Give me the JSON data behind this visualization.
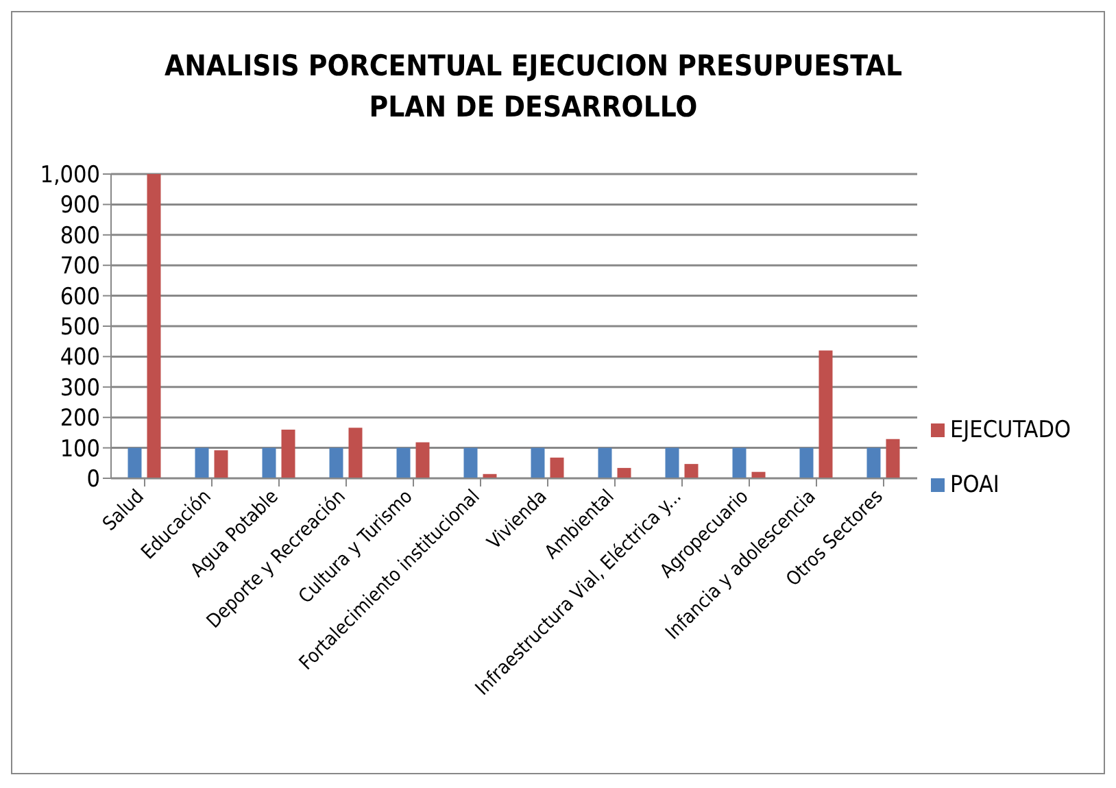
{
  "chart_data": {
    "type": "bar",
    "title": "ANALISIS PORCENTUAL EJECUCION PRESUPUESTAL  PLAN DE DESARROLLO",
    "categories": [
      "Salud",
      "Educación",
      "Agua Potable",
      "Deporte y Recreación",
      "Cultura y Turismo",
      "Fortalecimiento institucional",
      "Vivienda",
      "Ambiental",
      "Infraestructura Vial, Eléctrica y...",
      "Agropecuario",
      "Infancia y adolescencia",
      "Otros Sectores"
    ],
    "series": [
      {
        "name": "POAI",
        "color": "#4f81bd",
        "values": [
          100,
          100,
          100,
          100,
          100,
          100,
          100,
          100,
          100,
          100,
          100,
          100
        ]
      },
      {
        "name": "EJECUTADO",
        "color": "#c0504d",
        "values": [
          1000,
          92,
          160,
          166,
          118,
          14,
          68,
          34,
          47,
          21,
          420,
          129
        ]
      }
    ],
    "ylim": [
      0,
      1000
    ],
    "yticks": [
      {
        "value": 0,
        "label": "0"
      },
      {
        "value": 100,
        "label": "100"
      },
      {
        "value": 200,
        "label": "200"
      },
      {
        "value": 300,
        "label": "300"
      },
      {
        "value": 400,
        "label": "400"
      },
      {
        "value": 500,
        "label": "500"
      },
      {
        "value": 600,
        "label": "600"
      },
      {
        "value": 700,
        "label": "700"
      },
      {
        "value": 800,
        "label": "800"
      },
      {
        "value": 900,
        "label": "900"
      },
      {
        "value": 1000,
        "label": "1,000"
      }
    ],
    "grid": "y",
    "legend": "right"
  }
}
